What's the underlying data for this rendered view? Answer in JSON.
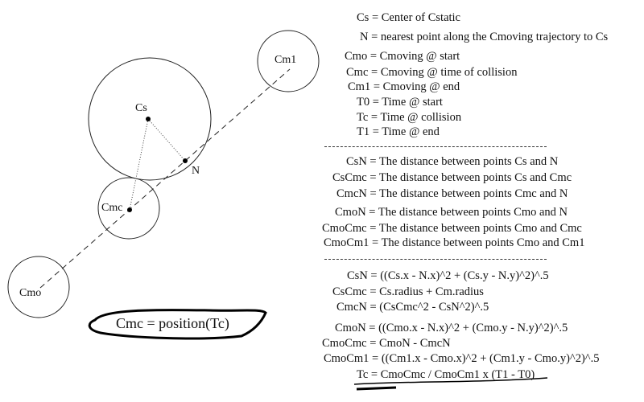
{
  "diagram": {
    "labels": {
      "cs": "Cs",
      "n": "N",
      "cm1": "Cm1",
      "cmc": "Cmc",
      "cmo": "Cmo"
    },
    "callout": "Cmc = position(Tc)"
  },
  "definitions": [
    "Cs = Center of Cstatic",
    "N = nearest point along the Cmoving trajectory to Cs",
    "Cmo = Cmoving @ start",
    "Cmc = Cmoving @ time of collision",
    "Cm1 = Cmoving @ end",
    "T0 = Time @ start",
    "Tc = Time @ collision",
    "T1 = Time @ end"
  ],
  "distances": [
    "CsN = The distance between points Cs and N",
    "CsCmc = The distance between points Cs and Cmc",
    "CmcN = The distance between points Cmc and N",
    "CmoN = The distance between points Cmo and N",
    "CmoCmc = The distance between points Cmo and Cmc",
    "CmoCm1 = The distance between points Cmo and Cm1"
  ],
  "formulas": [
    "CsN = ((Cs.x - N.x)^2 + (Cs.y - N.y)^2)^.5",
    "CsCmc = Cs.radius + Cm.radius",
    "CmcN = (CsCmc^2 - CsN^2)^.5",
    "CmoN = ((Cmo.x - N.x)^2 + (Cmo.y - N.y)^2)^.5",
    "CmoCmc = CmoN - CmcN",
    "CmoCm1 = ((Cm1.x - Cmo.x)^2 + (Cm1.y - Cmo.y)^2)^.5",
    "Tc = CmoCmc / CmoCm1 x (T1 - T0)"
  ]
}
